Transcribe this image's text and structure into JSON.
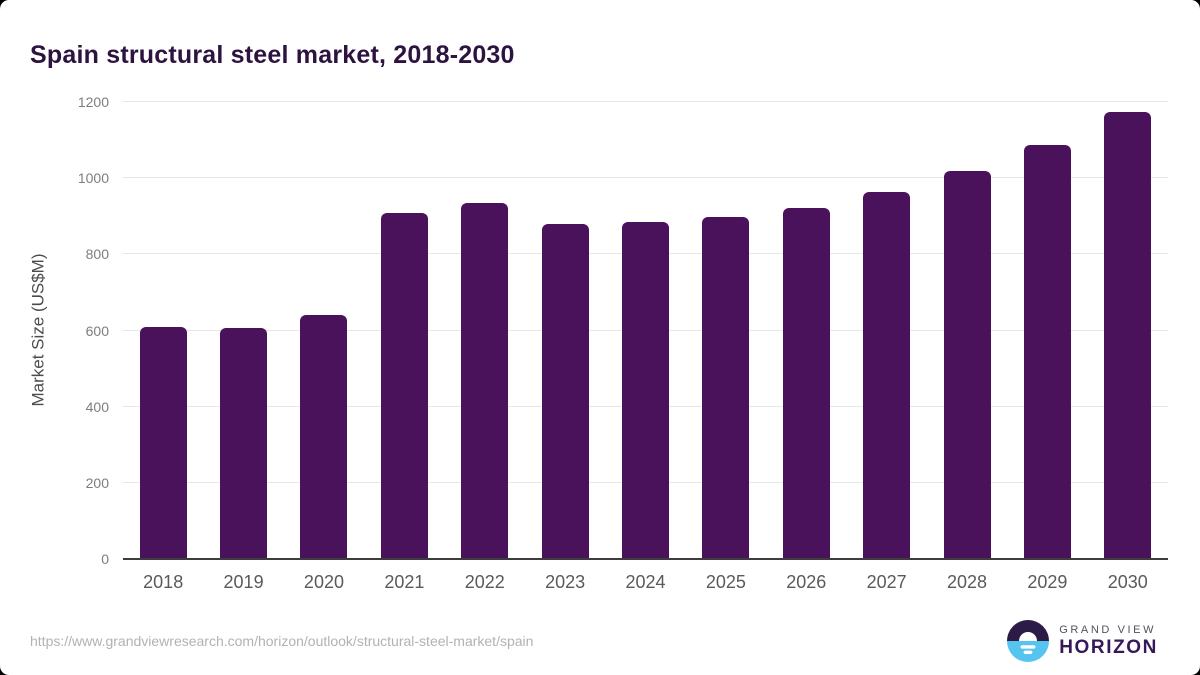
{
  "header": {
    "title": "Spain structural steel market, 2018-2030"
  },
  "footer": {
    "source_url": "https://www.grandviewresearch.com/horizon/outlook/structural-steel-market/spain",
    "logo": {
      "top": "GRAND VIEW",
      "bottom": "HORIZON"
    }
  },
  "colors": {
    "bar": "#49125A",
    "title": "#2C1340",
    "gridline": "#E7E7E7",
    "axis_line": "#3D3D3D",
    "y_tick_label": "#7D7D7D",
    "x_tick_label": "#5A5A5A",
    "y_axis_title": "#4C4C4C",
    "url_text": "#B2B2B2",
    "logo_purple": "#2D1B47",
    "logo_blue": "#56C4F1"
  },
  "chart_data": {
    "type": "bar",
    "title": "Spain structural steel market, 2018-2030",
    "xlabel": "",
    "ylabel": "Market Size (US$M)",
    "categories": [
      "2018",
      "2019",
      "2020",
      "2021",
      "2022",
      "2023",
      "2024",
      "2025",
      "2026",
      "2027",
      "2028",
      "2029",
      "2030"
    ],
    "values": [
      609,
      607,
      640,
      909,
      936,
      881,
      884,
      898,
      922,
      964,
      1020,
      1088,
      1175
    ],
    "ylim": [
      0,
      1200
    ],
    "yticks": [
      0,
      200,
      400,
      600,
      800,
      1000,
      1200
    ],
    "grid": true,
    "legend": false
  }
}
